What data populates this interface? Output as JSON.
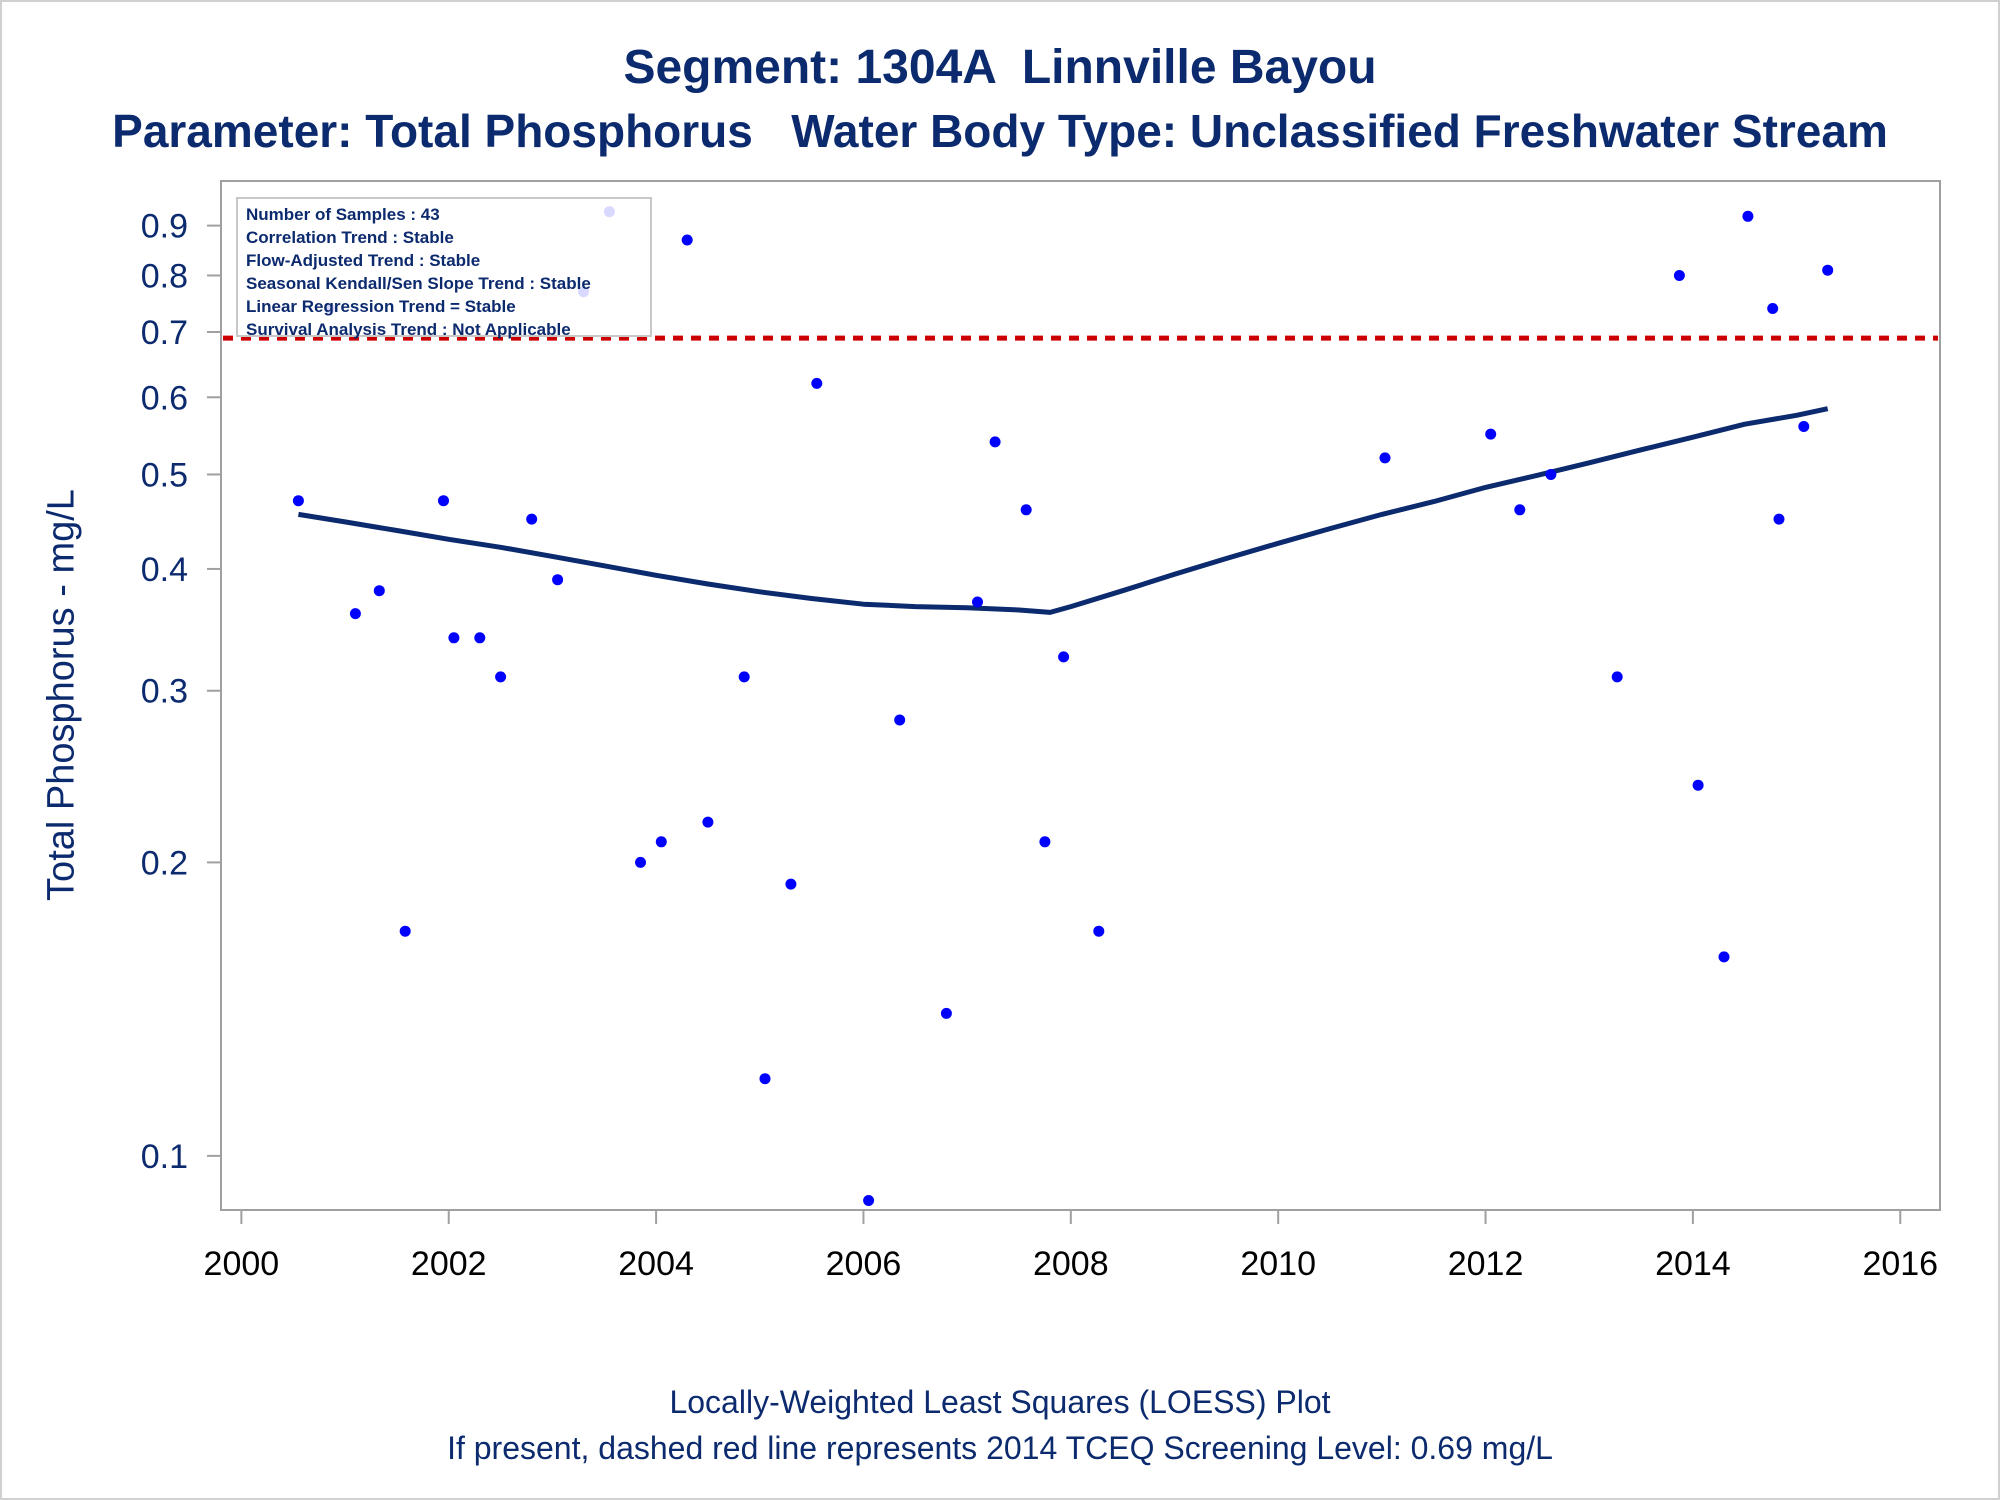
{
  "titles": {
    "line1": "Segment: 1304A  Linnville Bayou",
    "line2": "Parameter: Total Phosphorus   Water Body Type: Unclassified Freshwater Stream"
  },
  "footnotes": {
    "line1": "Locally-Weighted Least Squares (LOESS) Plot",
    "line2": "If present, dashed red line represents 2014 TCEQ Screening Level: 0.69 mg/L"
  },
  "info_box": [
    "Number of Samples : 43",
    "Correlation Trend : Stable",
    "Flow-Adjusted Trend : Stable",
    "Seasonal Kendall/Sen Slope Trend : Stable",
    "Linear Regression Trend = Stable",
    "Survival Analysis Trend : Not Applicable"
  ],
  "colors": {
    "text": "#0c2a6e",
    "points": "#0000ff",
    "loess": "#0c2a6e",
    "screening": "#cc0000",
    "axis": "#a0a0a0"
  },
  "chart_data": {
    "type": "scatter",
    "ylabel": "Total Phosphorus - mg/L",
    "xlabel": "",
    "y_scale": "log",
    "xlim": [
      1999.9,
      2016.2
    ],
    "ylim": [
      0.088,
      1.0
    ],
    "x_ticks": [
      "2000",
      "2002",
      "2004",
      "2006",
      "2008",
      "2010",
      "2012",
      "2014",
      "2016"
    ],
    "y_ticks": [
      "0.1",
      "0.2",
      "0.3",
      "0.4",
      "0.5",
      "0.6",
      "0.7",
      "0.8",
      "0.9"
    ],
    "screening_level": 0.69,
    "points": [
      [
        2000.55,
        0.47
      ],
      [
        2000.85,
        0.74
      ],
      [
        2001.1,
        0.36
      ],
      [
        2001.33,
        0.38
      ],
      [
        2001.58,
        0.17
      ],
      [
        2001.95,
        0.47
      ],
      [
        2002.05,
        0.34
      ],
      [
        2002.3,
        0.34
      ],
      [
        2002.5,
        0.31
      ],
      [
        2002.8,
        0.45
      ],
      [
        2003.05,
        0.39
      ],
      [
        2003.3,
        0.77
      ],
      [
        2003.55,
        0.93
      ],
      [
        2003.85,
        0.2
      ],
      [
        2004.05,
        0.21
      ],
      [
        2004.3,
        0.87
      ],
      [
        2004.5,
        0.22
      ],
      [
        2004.85,
        0.31
      ],
      [
        2005.05,
        0.12
      ],
      [
        2005.3,
        0.19
      ],
      [
        2005.55,
        0.62
      ],
      [
        2006.05,
        0.09
      ],
      [
        2006.35,
        0.28
      ],
      [
        2006.8,
        0.14
      ],
      [
        2007.1,
        0.37
      ],
      [
        2007.27,
        0.54
      ],
      [
        2007.57,
        0.46
      ],
      [
        2007.75,
        0.21
      ],
      [
        2007.93,
        0.325
      ],
      [
        2008.27,
        0.17
      ],
      [
        2011.03,
        0.52
      ],
      [
        2012.05,
        0.55
      ],
      [
        2012.33,
        0.46
      ],
      [
        2012.63,
        0.5
      ],
      [
        2013.27,
        0.31
      ],
      [
        2013.87,
        0.8
      ],
      [
        2014.05,
        0.24
      ],
      [
        2014.3,
        0.16
      ],
      [
        2014.53,
        0.92
      ],
      [
        2014.77,
        0.74
      ],
      [
        2014.83,
        0.45
      ],
      [
        2015.07,
        0.56
      ],
      [
        2015.3,
        0.81
      ]
    ],
    "loess": [
      [
        2000.55,
        0.455
      ],
      [
        2001.0,
        0.447
      ],
      [
        2001.5,
        0.438
      ],
      [
        2002.0,
        0.429
      ],
      [
        2002.5,
        0.421
      ],
      [
        2003.0,
        0.412
      ],
      [
        2003.5,
        0.403
      ],
      [
        2004.0,
        0.394
      ],
      [
        2004.5,
        0.386
      ],
      [
        2005.0,
        0.379
      ],
      [
        2005.5,
        0.373
      ],
      [
        2006.0,
        0.368
      ],
      [
        2006.5,
        0.366
      ],
      [
        2007.0,
        0.365
      ],
      [
        2007.5,
        0.363
      ],
      [
        2007.8,
        0.361
      ],
      [
        2008.0,
        0.366
      ],
      [
        2008.5,
        0.38
      ],
      [
        2009.0,
        0.395
      ],
      [
        2009.5,
        0.41
      ],
      [
        2010.0,
        0.425
      ],
      [
        2010.5,
        0.44
      ],
      [
        2011.0,
        0.455
      ],
      [
        2011.5,
        0.469
      ],
      [
        2012.0,
        0.485
      ],
      [
        2012.5,
        0.499
      ],
      [
        2013.0,
        0.514
      ],
      [
        2013.5,
        0.53
      ],
      [
        2014.0,
        0.546
      ],
      [
        2014.5,
        0.563
      ],
      [
        2015.0,
        0.575
      ],
      [
        2015.3,
        0.584
      ]
    ]
  }
}
